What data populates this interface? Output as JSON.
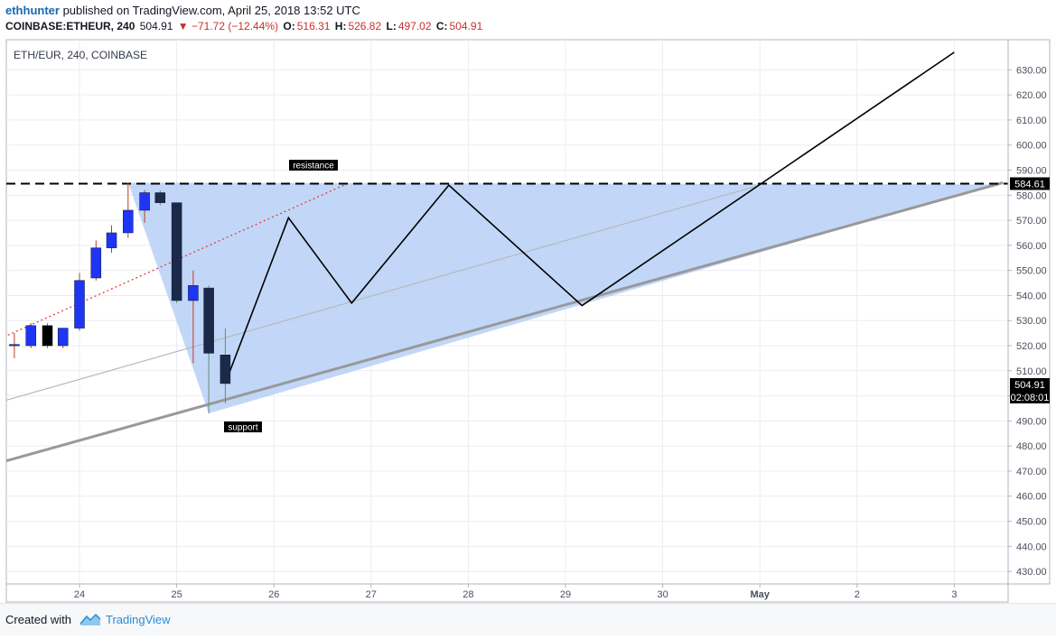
{
  "header": {
    "author": "ethhunter",
    "published": "published on TradingView.com, April 25, 2018 13:52 UTC",
    "symbol": "COINBASE:ETHEUR, 240",
    "last": "504.91",
    "change": "▼ −71.72 (−12.44%)",
    "o_label": "O:",
    "o_value": "516.31",
    "h_label": "H:",
    "h_value": "526.82",
    "l_label": "L:",
    "l_value": "497.02",
    "c_label": "C:",
    "c_value": "504.91"
  },
  "footer": {
    "created": "Created with",
    "brand": "TradingView"
  },
  "colors": {
    "up": "#1f35f5",
    "down": "#1c2a4a",
    "zone_fill": "#b3cdf6",
    "grid": "#e9edf2",
    "resistance": "#000000",
    "trend": "#999999",
    "dotted": "#e23d3d"
  },
  "chart_data": {
    "type": "candlestick",
    "legend": "ETH/EUR, 240, COINBASE",
    "x_ticks": [
      "24",
      "25",
      "26",
      "27",
      "28",
      "29",
      "30",
      "May",
      "2",
      "3"
    ],
    "y_ticks": [
      "430.00",
      "440.00",
      "450.00",
      "460.00",
      "470.00",
      "480.00",
      "490.00",
      "500.00",
      "510.00",
      "520.00",
      "530.00",
      "540.00",
      "550.00",
      "560.00",
      "570.00",
      "580.00",
      "590.00",
      "600.00",
      "610.00",
      "620.00",
      "630.00"
    ],
    "ylim": [
      425,
      642
    ],
    "grid": true,
    "candles": [
      {
        "t": 23.33,
        "o": 520.0,
        "h": 525.0,
        "l": 515.0,
        "c": 520.5,
        "dir": "up"
      },
      {
        "t": 23.5,
        "o": 520.0,
        "h": 529.0,
        "l": 519.0,
        "c": 528.0,
        "dir": "up"
      },
      {
        "t": 23.67,
        "o": 528.0,
        "h": 529.0,
        "l": 519.0,
        "c": 520.0,
        "dir": "flat"
      },
      {
        "t": 23.83,
        "o": 520.0,
        "h": 527.0,
        "l": 519.0,
        "c": 527.0,
        "dir": "up"
      },
      {
        "t": 24.0,
        "o": 527.0,
        "h": 549.0,
        "l": 526.0,
        "c": 546.0,
        "dir": "up"
      },
      {
        "t": 24.17,
        "o": 547.0,
        "h": 562.0,
        "l": 546.0,
        "c": 559.0,
        "dir": "up"
      },
      {
        "t": 24.33,
        "o": 559.0,
        "h": 568.0,
        "l": 557.0,
        "c": 565.0,
        "dir": "up"
      },
      {
        "t": 24.5,
        "o": 565.0,
        "h": 585.0,
        "l": 563.0,
        "c": 574.0,
        "dir": "up"
      },
      {
        "t": 24.67,
        "o": 574.0,
        "h": 582.0,
        "l": 569.0,
        "c": 581.0,
        "dir": "up"
      },
      {
        "t": 24.83,
        "o": 581.0,
        "h": 582.0,
        "l": 576.0,
        "c": 577.0,
        "dir": "down"
      },
      {
        "t": 25.0,
        "o": 577.0,
        "h": 577.0,
        "l": 537.0,
        "c": 538.0,
        "dir": "down"
      },
      {
        "t": 25.17,
        "o": 538.0,
        "h": 550.0,
        "l": 513.0,
        "c": 544.0,
        "dir": "up"
      },
      {
        "t": 25.33,
        "o": 543.0,
        "h": 544.0,
        "l": 493.0,
        "c": 517.0,
        "dir": "down"
      },
      {
        "t": 25.5,
        "o": 516.31,
        "h": 526.82,
        "l": 497.02,
        "c": 504.91,
        "dir": "down"
      }
    ],
    "annotations": {
      "resistance_label": "resistance",
      "support_label": "support",
      "resistance_level": 584.61,
      "current_price": "504.91",
      "countdown": "02:08:01",
      "resistance_price": "584.61"
    },
    "triangle": [
      {
        "t": 24.5,
        "y": 585
      },
      {
        "t": 25.33,
        "y": 493
      },
      {
        "t": 33.4,
        "y": 584.3
      }
    ],
    "zigzag": [
      {
        "t": 25.5,
        "y": 505
      },
      {
        "t": 26.15,
        "y": 571
      },
      {
        "t": 26.8,
        "y": 537
      },
      {
        "t": 27.8,
        "y": 584
      },
      {
        "t": 29.17,
        "y": 536
      },
      {
        "t": 33.0,
        "y": 637
      }
    ],
    "support_line": [
      {
        "t": 22.5,
        "y": 466
      },
      {
        "t": 33.5,
        "y": 585
      }
    ],
    "mid_line": [
      {
        "t": 22.5,
        "y": 490
      },
      {
        "t": 31.0,
        "y": 584
      }
    ],
    "dotted_line": [
      {
        "t": 22.5,
        "y": 511
      },
      {
        "t": 26.75,
        "y": 584.5
      }
    ]
  }
}
